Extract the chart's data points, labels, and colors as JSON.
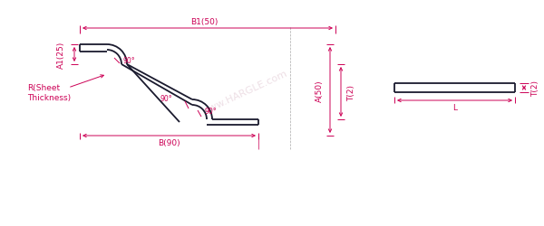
{
  "bg_color": "#ffffff",
  "line_color": "#1a1a2e",
  "dim_color": "#cc0055",
  "labels": {
    "B1": "B1(50)",
    "A1": "A1(25)",
    "R": "R(Sheet\nThickness)",
    "B": "B(90)",
    "T2_left": "T(2)",
    "A2": "A(50)",
    "T2_right": "T(2)",
    "L": "L",
    "angle1": "90°",
    "angle2": "90°",
    "angle3": "90°"
  },
  "font_size": 6.5,
  "watermark": "www.HARGLE.com"
}
